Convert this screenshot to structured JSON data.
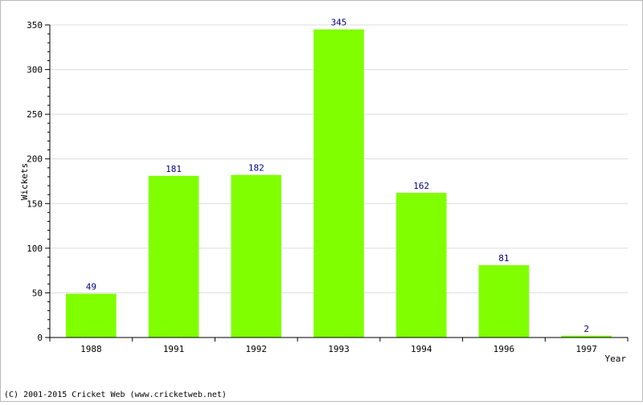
{
  "chart_data": {
    "type": "bar",
    "title": "",
    "xlabel": "Year",
    "ylabel": "Wickets",
    "categories": [
      "1988",
      "1991",
      "1992",
      "1993",
      "1994",
      "1996",
      "1997"
    ],
    "values": [
      49,
      181,
      182,
      345,
      162,
      81,
      2
    ],
    "ylim": [
      0,
      350
    ],
    "yticks": [
      0,
      50,
      100,
      150,
      200,
      250,
      300,
      350
    ],
    "grid": true,
    "legend": "none",
    "bar_color": "#80ff00",
    "label_color": "#000080"
  },
  "footer": "(C) 2001-2015 Cricket Web (www.cricketweb.net)"
}
